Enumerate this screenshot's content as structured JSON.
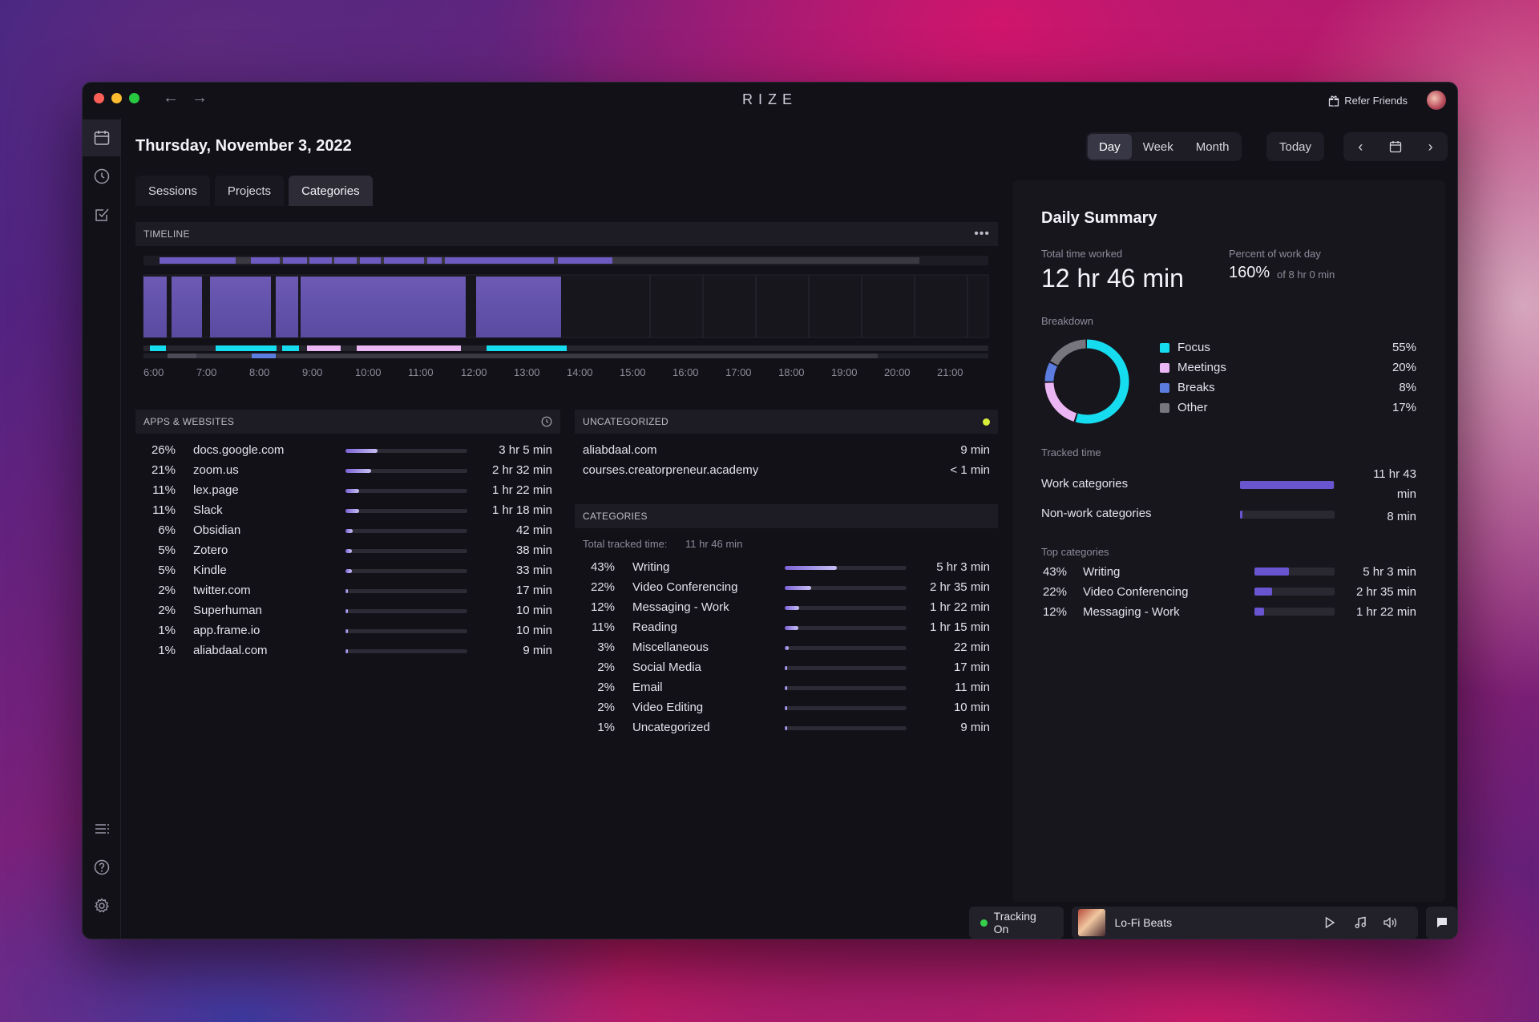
{
  "window": {
    "title": "RIZE",
    "refer_label": "Refer Friends"
  },
  "header": {
    "date": "Thursday, November 3, 2022"
  },
  "tabs": [
    {
      "label": "Sessions"
    },
    {
      "label": "Projects"
    },
    {
      "label": "Categories"
    }
  ],
  "range": {
    "day": "Day",
    "week": "Week",
    "month": "Month",
    "today": "Today"
  },
  "timeline": {
    "title": "TIMELINE",
    "hours": [
      "6:00",
      "7:00",
      "8:00",
      "9:00",
      "10:00",
      "11:00",
      "12:00",
      "13:00",
      "14:00",
      "15:00",
      "16:00",
      "17:00",
      "18:00",
      "19:00",
      "20:00",
      "21:00"
    ]
  },
  "apps": {
    "title": "APPS & WEBSITES",
    "items": [
      {
        "pct": "26%",
        "name": "docs.google.com",
        "time": "3 hr 5 min",
        "frac": 0.26
      },
      {
        "pct": "21%",
        "name": "zoom.us",
        "time": "2 hr 32 min",
        "frac": 0.21
      },
      {
        "pct": "11%",
        "name": "lex.page",
        "time": "1 hr 22 min",
        "frac": 0.11
      },
      {
        "pct": "11%",
        "name": "Slack",
        "time": "1 hr 18 min",
        "frac": 0.11
      },
      {
        "pct": "6%",
        "name": "Obsidian",
        "time": "42 min",
        "frac": 0.06
      },
      {
        "pct": "5%",
        "name": "Zotero",
        "time": "38 min",
        "frac": 0.05
      },
      {
        "pct": "5%",
        "name": "Kindle",
        "time": "33 min",
        "frac": 0.05
      },
      {
        "pct": "2%",
        "name": "twitter.com",
        "time": "17 min",
        "frac": 0.02
      },
      {
        "pct": "2%",
        "name": "Superhuman",
        "time": "10 min",
        "frac": 0.02
      },
      {
        "pct": "1%",
        "name": "app.frame.io",
        "time": "10 min",
        "frac": 0.01
      },
      {
        "pct": "1%",
        "name": "aliabdaal.com",
        "time": "9 min",
        "frac": 0.01
      }
    ]
  },
  "uncategorized": {
    "title": "UNCATEGORIZED",
    "items": [
      {
        "name": "aliabdaal.com",
        "time": "9 min"
      },
      {
        "name": "courses.creatorpreneur.academy",
        "time": "< 1 min"
      }
    ]
  },
  "categories": {
    "title": "CATEGORIES",
    "total_label": "Total tracked time:",
    "total_value": "11 hr 46 min",
    "items": [
      {
        "pct": "43%",
        "name": "Writing",
        "time": "5 hr 3 min",
        "frac": 0.43
      },
      {
        "pct": "22%",
        "name": "Video Conferencing",
        "time": "2 hr 35 min",
        "frac": 0.22
      },
      {
        "pct": "12%",
        "name": "Messaging - Work",
        "time": "1 hr 22 min",
        "frac": 0.12
      },
      {
        "pct": "11%",
        "name": "Reading",
        "time": "1 hr 15 min",
        "frac": 0.11
      },
      {
        "pct": "3%",
        "name": "Miscellaneous",
        "time": "22 min",
        "frac": 0.03
      },
      {
        "pct": "2%",
        "name": "Social Media",
        "time": "17 min",
        "frac": 0.02
      },
      {
        "pct": "2%",
        "name": "Email",
        "time": "11 min",
        "frac": 0.02
      },
      {
        "pct": "2%",
        "name": "Video Editing",
        "time": "10 min",
        "frac": 0.02
      },
      {
        "pct": "1%",
        "name": "Uncategorized",
        "time": "9 min",
        "frac": 0.01
      }
    ]
  },
  "summary": {
    "title": "Daily Summary",
    "total_label": "Total time worked",
    "total_value": "12 hr 46 min",
    "percent_label": "Percent of work day",
    "percent_value": "160%",
    "percent_sub": "of 8 hr 0 min",
    "breakdown_label": "Breakdown",
    "breakdown": [
      {
        "name": "Focus",
        "pct": "55%",
        "frac": 0.55,
        "color": "#16dcf0"
      },
      {
        "name": "Meetings",
        "pct": "20%",
        "frac": 0.2,
        "color": "#eab6f3"
      },
      {
        "name": "Breaks",
        "pct": "8%",
        "frac": 0.08,
        "color": "#5b7de0"
      },
      {
        "name": "Other",
        "pct": "17%",
        "frac": 0.17,
        "color": "#77767f"
      }
    ],
    "tracked_label": "Tracked time",
    "tracked": [
      {
        "name": "Work categories",
        "time": "11 hr 43 min",
        "frac": 0.99
      },
      {
        "name": "Non-work categories",
        "time": "8 min",
        "frac": 0.02
      }
    ],
    "top_label": "Top categories",
    "top": [
      {
        "pct": "43%",
        "name": "Writing",
        "time": "5 hr 3 min",
        "frac": 0.43
      },
      {
        "pct": "22%",
        "name": "Video Conferencing",
        "time": "2 hr 35 min",
        "frac": 0.22
      },
      {
        "pct": "12%",
        "name": "Messaging - Work",
        "time": "1 hr 22 min",
        "frac": 0.12
      }
    ]
  },
  "footer": {
    "tracking": "Tracking On",
    "music": "Lo-Fi Beats"
  }
}
